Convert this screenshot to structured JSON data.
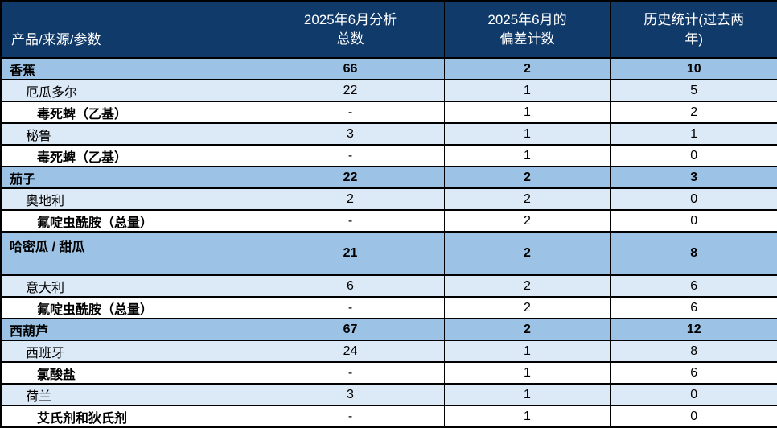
{
  "chart_data": {
    "type": "table",
    "columns": [
      "产品/来源/参数",
      "2025年6月分析\n总数",
      "2025年6月的\n偏差计数",
      "历史统计(过去两\n年)"
    ],
    "rows": [
      {
        "level": "product",
        "label": "香蕉",
        "values": [
          "66",
          "2",
          "10"
        ]
      },
      {
        "level": "origin",
        "label": "厄瓜多尔",
        "values": [
          "22",
          "1",
          "5"
        ]
      },
      {
        "level": "parameter",
        "label": "毒死蜱（乙基）",
        "values": [
          "-",
          "1",
          "2"
        ]
      },
      {
        "level": "origin",
        "label": "秘鲁",
        "values": [
          "3",
          "1",
          "1"
        ]
      },
      {
        "level": "parameter",
        "label": "毒死蜱（乙基）",
        "values": [
          "-",
          "1",
          "0"
        ]
      },
      {
        "level": "product",
        "label": "茄子",
        "values": [
          "22",
          "2",
          "3"
        ]
      },
      {
        "level": "origin",
        "label": "奥地利",
        "values": [
          "2",
          "2",
          "0"
        ]
      },
      {
        "level": "parameter",
        "label": "氟啶虫酰胺（总量）",
        "values": [
          "-",
          "2",
          "0"
        ]
      },
      {
        "level": "product",
        "label": "哈密瓜 / 甜瓜",
        "values": [
          "21",
          "2",
          "8"
        ],
        "tall": true
      },
      {
        "level": "origin",
        "label": "意大利",
        "values": [
          "6",
          "2",
          "6"
        ]
      },
      {
        "level": "parameter",
        "label": "氟啶虫酰胺（总量）",
        "values": [
          "-",
          "2",
          "6"
        ]
      },
      {
        "level": "product",
        "label": "西葫芦",
        "values": [
          "67",
          "2",
          "12"
        ]
      },
      {
        "level": "origin",
        "label": "西班牙",
        "values": [
          "24",
          "1",
          "8"
        ]
      },
      {
        "level": "parameter",
        "label": "氯酸盐",
        "values": [
          "-",
          "1",
          "6"
        ]
      },
      {
        "level": "origin",
        "label": "荷兰",
        "values": [
          "3",
          "1",
          "0"
        ]
      },
      {
        "level": "parameter",
        "label": "艾氏剂和狄氏剂",
        "values": [
          "-",
          "1",
          "0"
        ]
      }
    ],
    "layout": {
      "legend": "none",
      "grid": "all-borders"
    }
  },
  "colors": {
    "header_bg": "#103A6A",
    "header_text": "#FFFFFF",
    "product_row_bg": "#9CC3E5",
    "origin_row_bg": "#DCE9F6",
    "parameter_row_bg": "#FFFFFF",
    "border": "#000000"
  }
}
